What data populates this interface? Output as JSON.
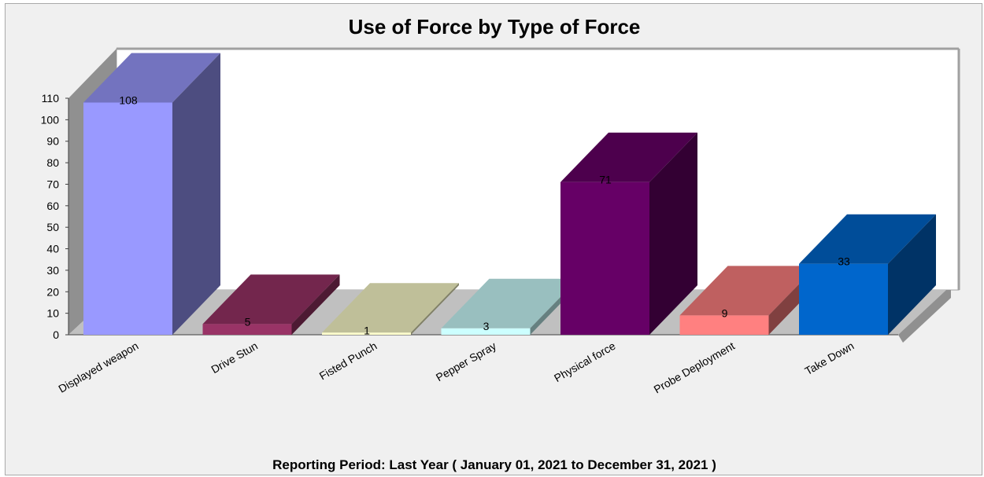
{
  "chart_data": {
    "type": "bar",
    "title": "Use of Force by Type of Force",
    "subtitle": "Reporting Period:  Last Year ( January 01, 2021 to December 31, 2021 )",
    "categories": [
      "Displayed weapon",
      "Drive Stun",
      "Fisted Punch",
      "Pepper Spray",
      "Physical force",
      "Probe Deployment",
      "Take Down"
    ],
    "values": [
      108,
      5,
      1,
      3,
      71,
      9,
      33
    ],
    "colors": [
      "#9999ff",
      "#993366",
      "#ffffcc",
      "#ccffff",
      "#660066",
      "#ff8080",
      "#0066cc"
    ],
    "data_labels": [
      "108",
      "5",
      "1",
      "3",
      "71",
      "9",
      "33"
    ],
    "yticks": [
      "0",
      "10",
      "20",
      "30",
      "40",
      "50",
      "60",
      "70",
      "80",
      "90",
      "100",
      "110"
    ],
    "ylim": [
      0,
      110
    ],
    "xlabel": "",
    "ylabel": "",
    "grid": false,
    "legend": "none",
    "style": "3d"
  }
}
